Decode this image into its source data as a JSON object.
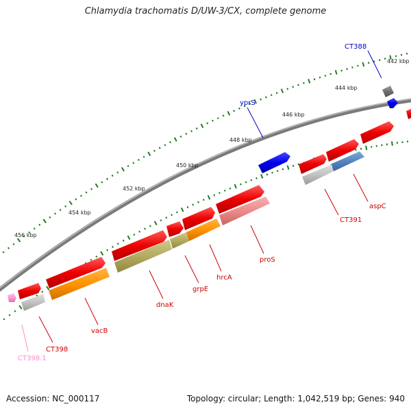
{
  "title": "Chlamydia trachomatis D/UW-3/CX, complete genome",
  "footer": {
    "accession": "Accession: NC_000117",
    "summary": "Topology: circular; Length: 1,042,519 bp; Genes: 940"
  },
  "colors": {
    "backbone": "#8c8c8c",
    "tick": "#1e7a1e",
    "label_red": "#cc0000",
    "label_blue": "#0000cc",
    "label_pink": "#ff88cc"
  },
  "ticks": [
    {
      "label": "442 kbp"
    },
    {
      "label": "444 kbp"
    },
    {
      "label": "446 kbp"
    },
    {
      "label": "448 kbp"
    },
    {
      "label": "450 kbp"
    },
    {
      "label": "452 kbp"
    },
    {
      "label": "454 kbp"
    },
    {
      "label": "456 kbp"
    }
  ],
  "genes": [
    {
      "name": "CT388",
      "color": "blue"
    },
    {
      "name": "yprS",
      "color": "blue"
    },
    {
      "name": "aspC",
      "color": "red"
    },
    {
      "name": "CT391",
      "color": "red"
    },
    {
      "name": "proS",
      "color": "red"
    },
    {
      "name": "hrcA",
      "color": "red"
    },
    {
      "name": "grpE",
      "color": "red"
    },
    {
      "name": "dnaK",
      "color": "red"
    },
    {
      "name": "vacB",
      "color": "red"
    },
    {
      "name": "CT398",
      "color": "red"
    },
    {
      "name": "CT398.1",
      "color": "pink"
    }
  ]
}
